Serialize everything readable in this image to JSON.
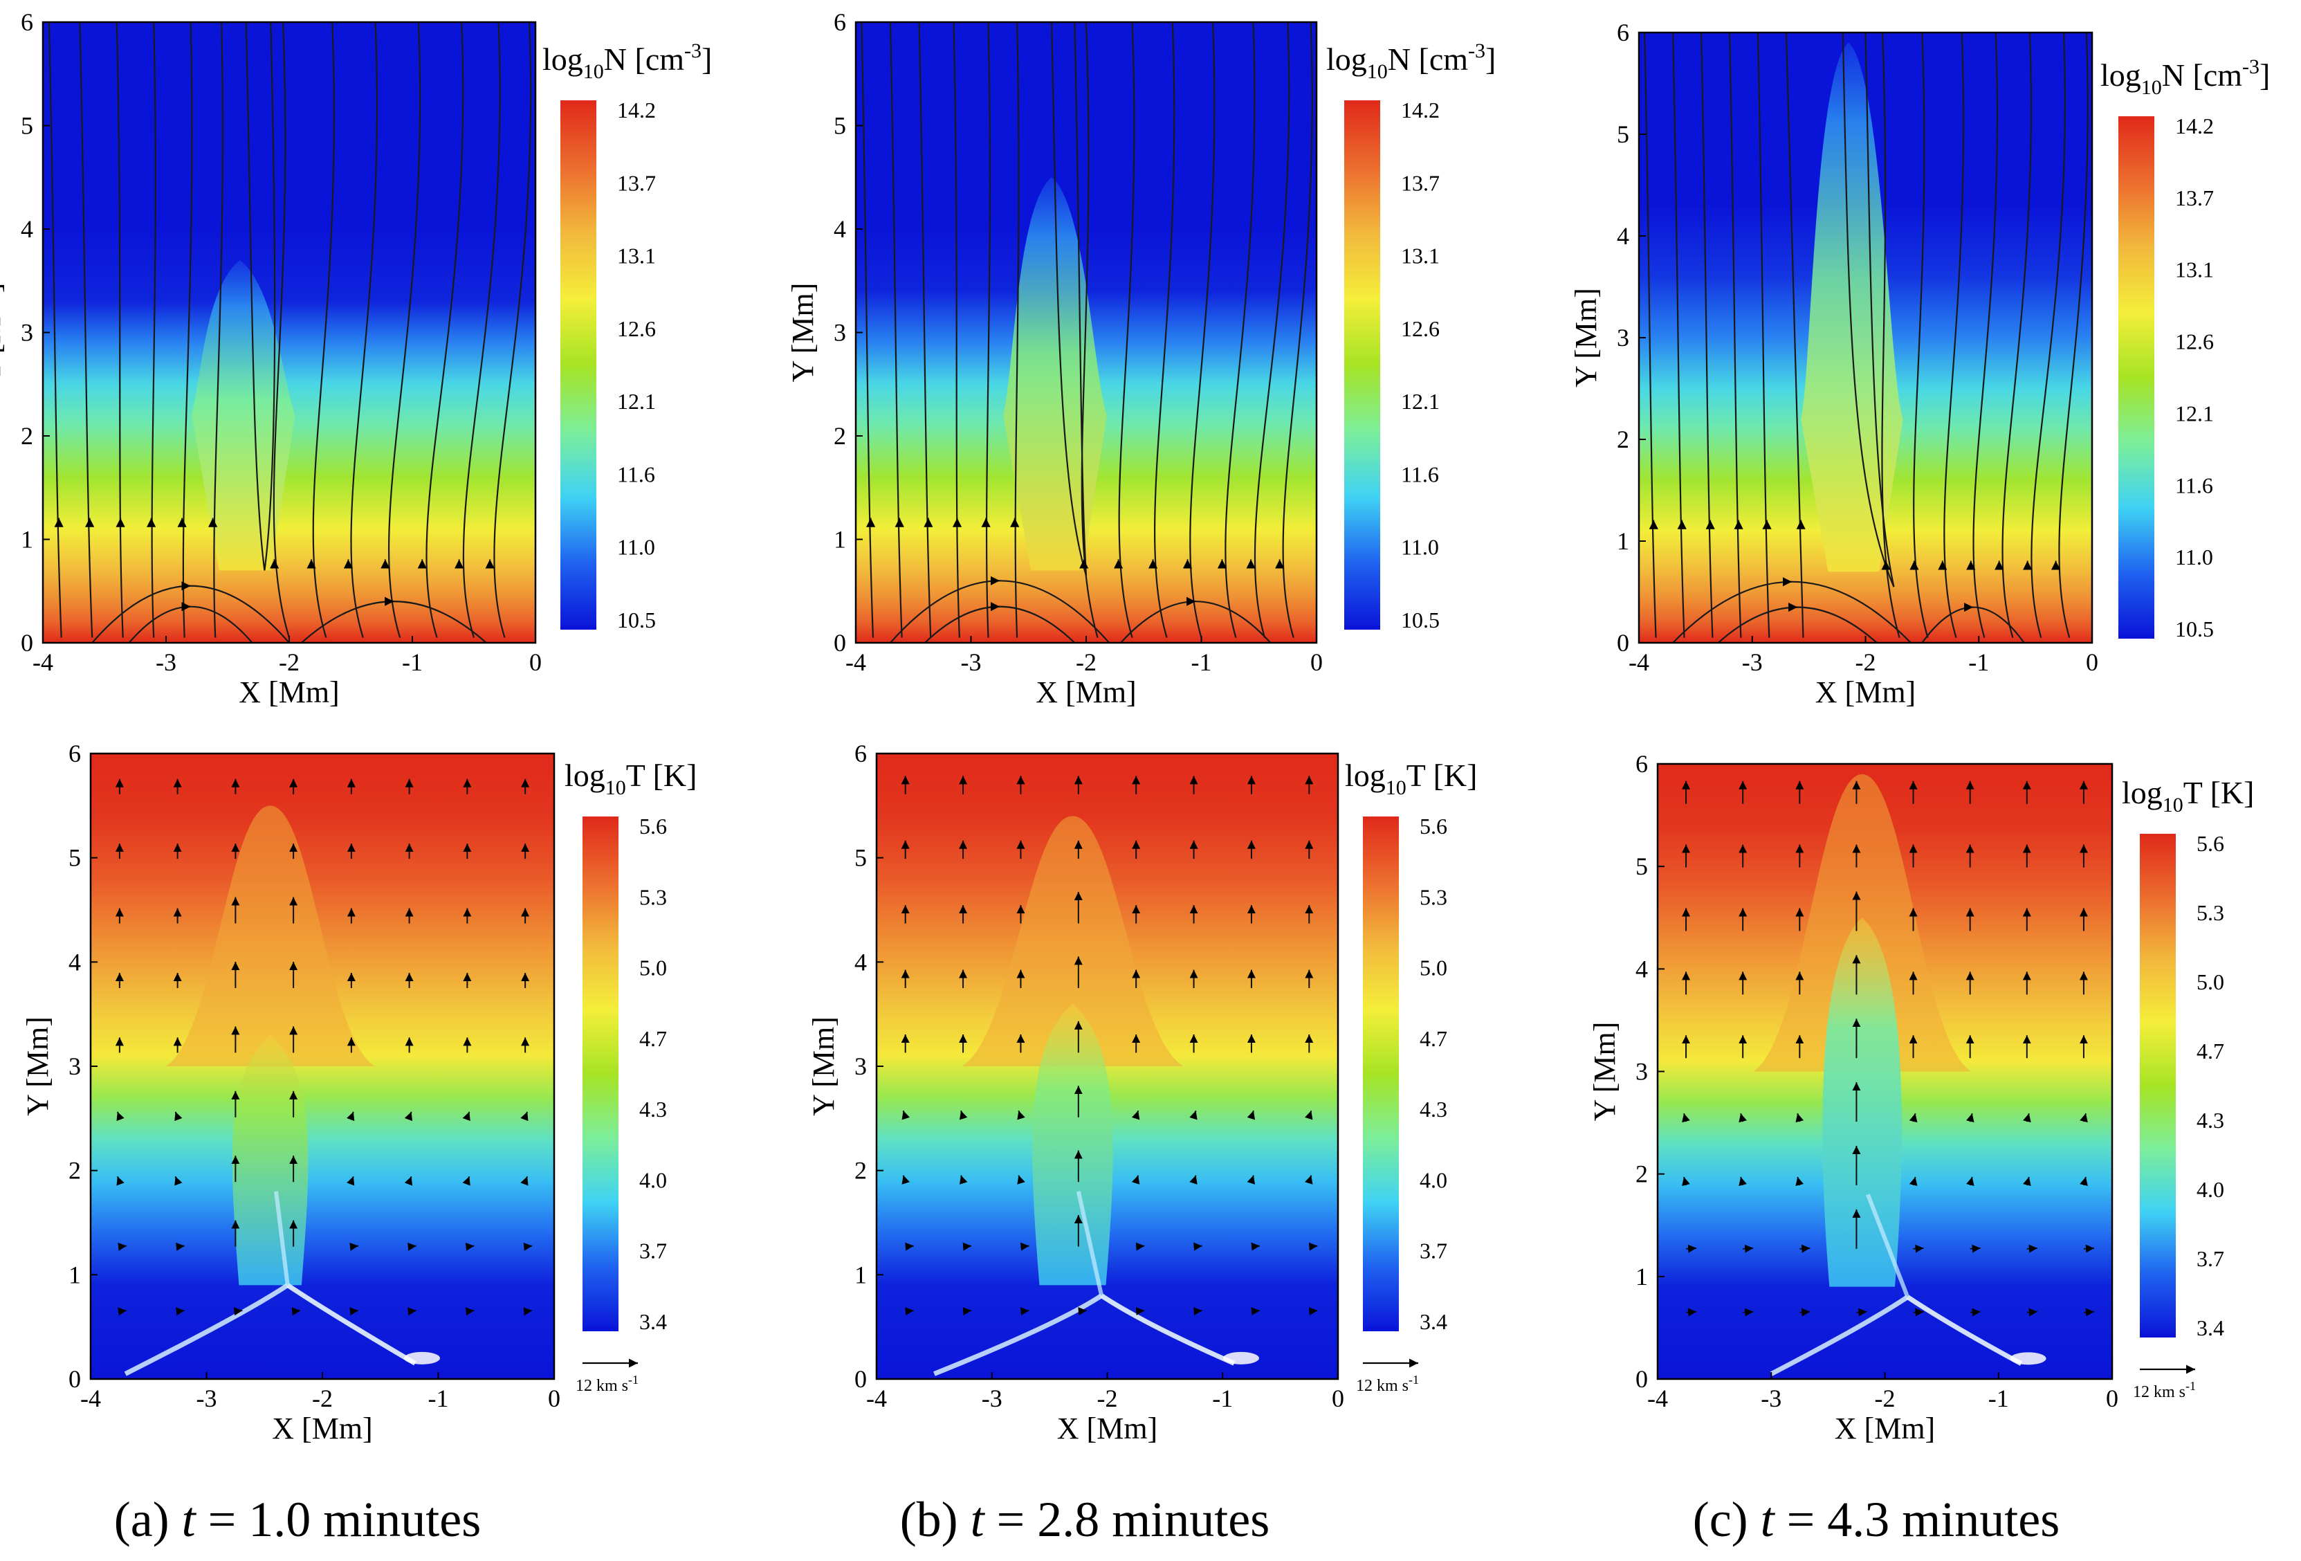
{
  "figure": {
    "colors": {
      "c0": "#0a14d8",
      "c1": "#1f62f0",
      "c2": "#3fd2f4",
      "c3": "#7cee9a",
      "c4": "#a6e424",
      "c5": "#f4ee3a",
      "c6": "#f2b83c",
      "c7": "#ec6c2e",
      "c8": "#e02a1a",
      "frame": "#000000"
    },
    "columns": [
      {
        "caption_label": "(a)",
        "caption_var": "t",
        "caption_eq": "=",
        "caption_value": "1.0",
        "caption_unit": "minutes"
      },
      {
        "caption_label": "(b)",
        "caption_var": "t",
        "caption_eq": "=",
        "caption_value": "2.8",
        "caption_unit": "minutes"
      },
      {
        "caption_label": "(c)",
        "caption_var": "t",
        "caption_eq": "=",
        "caption_value": "4.3",
        "caption_unit": "minutes"
      }
    ],
    "vector_reference": {
      "label": "12 km s",
      "exp": "-1"
    }
  },
  "chart_data": [
    {
      "type": "heatmap",
      "panel": "a-top",
      "quantity": "density",
      "title": "",
      "xlabel": "X [Mm]",
      "ylabel": "Y [Mm]",
      "xlim": [
        -4,
        0
      ],
      "ylim": [
        0,
        6
      ],
      "xticks": [
        "-4",
        "-3",
        "-2",
        "-1",
        "0"
      ],
      "yticks": [
        "0",
        "1",
        "2",
        "3",
        "4",
        "5",
        "6"
      ],
      "colorbar_label": "log10N [cm-3]",
      "colorbar_title": {
        "base": "log",
        "sub": "10",
        "var": "N",
        "unit_open": " [cm",
        "sup": "-3",
        "unit_close": "]"
      },
      "colorbar_ticks": [
        "14.2",
        "13.7",
        "13.1",
        "12.6",
        "12.1",
        "11.6",
        "11.0",
        "10.5"
      ],
      "vmin": 10.5,
      "vmax": 14.2,
      "bands": [
        {
          "y": 0.0,
          "v": 14.2
        },
        {
          "y": 0.2,
          "v": 13.8
        },
        {
          "y": 0.45,
          "v": 13.5
        },
        {
          "y": 0.75,
          "v": 13.2
        },
        {
          "y": 1.1,
          "v": 12.8
        },
        {
          "y": 1.6,
          "v": 12.3
        },
        {
          "y": 2.1,
          "v": 11.8
        },
        {
          "y": 2.5,
          "v": 11.5
        },
        {
          "y": 2.9,
          "v": 11.1
        },
        {
          "y": 3.3,
          "v": 10.6
        },
        {
          "y": 4.0,
          "v": 10.5
        },
        {
          "y": 6.0,
          "v": 10.5
        }
      ],
      "jet": {
        "x_center": -2.4,
        "half_width": 0.28,
        "top": 3.7,
        "core_value": 12.9
      },
      "field_lines": {
        "left_x_bottom": [
          -3.85,
          -3.6,
          -3.35,
          -3.1,
          -2.85,
          -2.6
        ],
        "left_x_top": [
          -3.95,
          -3.7,
          -3.4,
          -3.1,
          -2.8,
          -2.55
        ],
        "center_x": [
          -2.3,
          -2.1
        ],
        "right_x_bottom": [
          -2.0,
          -1.7,
          -1.4,
          -1.1,
          -0.8,
          -0.5,
          -0.25
        ],
        "right_x_top": [
          -2.05,
          -1.65,
          -1.3,
          -0.95,
          -0.6,
          -0.3,
          -0.05
        ],
        "null_x": -2.2,
        "null_y": 0.7,
        "loops": [
          {
            "x1": -3.6,
            "x2": -2.0,
            "h": 0.55
          },
          {
            "x1": -3.3,
            "x2": -2.3,
            "h": 0.35
          },
          {
            "x1": -1.9,
            "x2": -0.4,
            "h": 0.4
          }
        ]
      }
    },
    {
      "type": "heatmap",
      "panel": "b-top",
      "quantity": "density",
      "title": "",
      "xlabel": "X [Mm]",
      "ylabel": "Y [Mm]",
      "xlim": [
        -4,
        0
      ],
      "ylim": [
        0,
        6
      ],
      "xticks": [
        "-4",
        "-3",
        "-2",
        "-1",
        "0"
      ],
      "yticks": [
        "0",
        "1",
        "2",
        "3",
        "4",
        "5",
        "6"
      ],
      "colorbar_label": "log10N [cm-3]",
      "colorbar_title": {
        "base": "log",
        "sub": "10",
        "var": "N",
        "unit_open": " [cm",
        "sup": "-3",
        "unit_close": "]"
      },
      "colorbar_ticks": [
        "14.2",
        "13.7",
        "13.1",
        "12.6",
        "12.1",
        "11.6",
        "11.0",
        "10.5"
      ],
      "vmin": 10.5,
      "vmax": 14.2,
      "bands": [
        {
          "y": 0.0,
          "v": 14.2
        },
        {
          "y": 0.2,
          "v": 13.8
        },
        {
          "y": 0.45,
          "v": 13.5
        },
        {
          "y": 0.75,
          "v": 13.2
        },
        {
          "y": 1.1,
          "v": 12.8
        },
        {
          "y": 1.6,
          "v": 12.3
        },
        {
          "y": 2.1,
          "v": 11.8
        },
        {
          "y": 2.5,
          "v": 11.5
        },
        {
          "y": 2.9,
          "v": 11.1
        },
        {
          "y": 3.4,
          "v": 10.6
        },
        {
          "y": 4.0,
          "v": 10.5
        },
        {
          "y": 6.0,
          "v": 10.5
        }
      ],
      "jet": {
        "x_center": -2.3,
        "half_width": 0.3,
        "top": 4.5,
        "core_value": 13.0
      },
      "field_lines": {
        "left_x_bottom": [
          -3.85,
          -3.6,
          -3.35,
          -3.1,
          -2.85,
          -2.6
        ],
        "left_x_top": [
          -3.95,
          -3.7,
          -3.45,
          -3.15,
          -2.85,
          -2.6
        ],
        "center_x": [
          -2.25,
          -2.05
        ],
        "right_x_bottom": [
          -1.9,
          -1.6,
          -1.3,
          -1.0,
          -0.7,
          -0.45,
          -0.2
        ],
        "right_x_top": [
          -2.0,
          -1.6,
          -1.25,
          -0.9,
          -0.55,
          -0.25,
          -0.05
        ],
        "null_x": -2.0,
        "null_y": 0.65,
        "loops": [
          {
            "x1": -3.7,
            "x2": -1.8,
            "h": 0.6
          },
          {
            "x1": -3.4,
            "x2": -2.1,
            "h": 0.35
          },
          {
            "x1": -1.7,
            "x2": -0.4,
            "h": 0.4
          }
        ]
      }
    },
    {
      "type": "heatmap",
      "panel": "c-top",
      "quantity": "density",
      "title": "",
      "xlabel": "X [Mm]",
      "ylabel": "Y [Mm]",
      "xlim": [
        -4,
        0
      ],
      "ylim": [
        0,
        6
      ],
      "xticks": [
        "-4",
        "-3",
        "-2",
        "-1",
        "0"
      ],
      "yticks": [
        "0",
        "1",
        "2",
        "3",
        "4",
        "5",
        "6"
      ],
      "colorbar_label": "log10N [cm-3]",
      "colorbar_title": {
        "base": "log",
        "sub": "10",
        "var": "N",
        "unit_open": " [cm",
        "sup": "-3",
        "unit_close": "]"
      },
      "colorbar_ticks": [
        "14.2",
        "13.7",
        "13.1",
        "12.6",
        "12.1",
        "11.6",
        "11.0",
        "10.5"
      ],
      "vmin": 10.5,
      "vmax": 14.2,
      "bands": [
        {
          "y": 0.0,
          "v": 14.2
        },
        {
          "y": 0.2,
          "v": 13.8
        },
        {
          "y": 0.45,
          "v": 13.5
        },
        {
          "y": 0.75,
          "v": 13.2
        },
        {
          "y": 1.1,
          "v": 12.8
        },
        {
          "y": 1.6,
          "v": 12.3
        },
        {
          "y": 2.1,
          "v": 11.8
        },
        {
          "y": 2.5,
          "v": 11.5
        },
        {
          "y": 3.0,
          "v": 11.1
        },
        {
          "y": 3.6,
          "v": 10.7
        },
        {
          "y": 4.3,
          "v": 10.5
        },
        {
          "y": 6.0,
          "v": 10.5
        }
      ],
      "jet": {
        "x_center": -2.15,
        "half_width": 0.3,
        "top": 5.9,
        "core_value": 12.9
      },
      "field_lines": {
        "left_x_bottom": [
          -3.85,
          -3.6,
          -3.35,
          -3.1,
          -2.85,
          -2.55
        ],
        "left_x_top": [
          -3.95,
          -3.7,
          -3.45,
          -3.2,
          -2.95,
          -2.7
        ],
        "center_x": [
          -2.15,
          -1.95
        ],
        "right_x_bottom": [
          -1.7,
          -1.45,
          -1.2,
          -0.95,
          -0.7,
          -0.45,
          -0.2
        ],
        "right_x_top": [
          -1.85,
          -1.5,
          -1.15,
          -0.85,
          -0.55,
          -0.25,
          -0.05
        ],
        "null_x": -1.75,
        "null_y": 0.55,
        "loops": [
          {
            "x1": -3.7,
            "x2": -1.6,
            "h": 0.6
          },
          {
            "x1": -3.3,
            "x2": -1.9,
            "h": 0.35
          },
          {
            "x1": -1.5,
            "x2": -0.6,
            "h": 0.35
          }
        ]
      }
    },
    {
      "type": "heatmap",
      "panel": "a-bottom",
      "quantity": "temperature",
      "title": "",
      "xlabel": "X [Mm]",
      "ylabel": "Y [Mm]",
      "xlim": [
        -4,
        0
      ],
      "ylim": [
        0,
        6
      ],
      "xticks": [
        "-4",
        "-3",
        "-2",
        "-1",
        "0"
      ],
      "yticks": [
        "0",
        "1",
        "2",
        "3",
        "4",
        "5",
        "6"
      ],
      "colorbar_label": "log10T [K]",
      "colorbar_title": {
        "base": "log",
        "sub": "10",
        "var": "T",
        "unit_open": " [K]",
        "sup": "",
        "unit_close": ""
      },
      "colorbar_ticks": [
        "5.6",
        "5.3",
        "5.0",
        "4.7",
        "4.3",
        "4.0",
        "3.7",
        "3.4"
      ],
      "vmin": 3.4,
      "vmax": 5.6,
      "bands": [
        {
          "y": 0.0,
          "v": 3.4
        },
        {
          "y": 0.9,
          "v": 3.45
        },
        {
          "y": 1.4,
          "v": 3.7
        },
        {
          "y": 1.9,
          "v": 3.9
        },
        {
          "y": 2.3,
          "v": 4.1
        },
        {
          "y": 2.7,
          "v": 4.4
        },
        {
          "y": 3.1,
          "v": 4.8
        },
        {
          "y": 3.6,
          "v": 5.0
        },
        {
          "y": 4.2,
          "v": 5.2
        },
        {
          "y": 4.8,
          "v": 5.4
        },
        {
          "y": 5.4,
          "v": 5.55
        },
        {
          "y": 6.0,
          "v": 5.6
        }
      ],
      "jet": {
        "x_center": -2.45,
        "half_width": 0.3,
        "top": 5.5,
        "core_value": 4.4,
        "cool_top": 3.3
      },
      "current_sheet": {
        "apex_x": -2.3,
        "apex_y": 0.9,
        "left_x": -3.7,
        "right_x": -1.2
      },
      "vectors": {
        "length_scale": 1.0,
        "ref_speed": 12
      }
    },
    {
      "type": "heatmap",
      "panel": "b-bottom",
      "quantity": "temperature",
      "title": "",
      "xlabel": "X [Mm]",
      "ylabel": "Y [Mm]",
      "xlim": [
        -4,
        0
      ],
      "ylim": [
        0,
        6
      ],
      "xticks": [
        "-4",
        "-3",
        "-2",
        "-1",
        "0"
      ],
      "yticks": [
        "0",
        "1",
        "2",
        "3",
        "4",
        "5",
        "6"
      ],
      "colorbar_label": "log10T [K]",
      "colorbar_title": {
        "base": "log",
        "sub": "10",
        "var": "T",
        "unit_open": " [K]",
        "sup": "",
        "unit_close": ""
      },
      "colorbar_ticks": [
        "5.6",
        "5.3",
        "5.0",
        "4.7",
        "4.3",
        "4.0",
        "3.7",
        "3.4"
      ],
      "vmin": 3.4,
      "vmax": 5.6,
      "bands": [
        {
          "y": 0.0,
          "v": 3.4
        },
        {
          "y": 0.9,
          "v": 3.45
        },
        {
          "y": 1.4,
          "v": 3.7
        },
        {
          "y": 1.9,
          "v": 3.9
        },
        {
          "y": 2.3,
          "v": 4.1
        },
        {
          "y": 2.7,
          "v": 4.4
        },
        {
          "y": 3.1,
          "v": 4.8
        },
        {
          "y": 3.6,
          "v": 5.0
        },
        {
          "y": 4.2,
          "v": 5.2
        },
        {
          "y": 4.8,
          "v": 5.4
        },
        {
          "y": 5.4,
          "v": 5.55
        },
        {
          "y": 6.0,
          "v": 5.6
        }
      ],
      "jet": {
        "x_center": -2.3,
        "half_width": 0.32,
        "top": 5.4,
        "core_value": 4.3,
        "cool_top": 3.6
      },
      "current_sheet": {
        "apex_x": -2.05,
        "apex_y": 0.8,
        "left_x": -3.5,
        "right_x": -0.9
      },
      "vectors": {
        "length_scale": 1.2,
        "ref_speed": 12
      }
    },
    {
      "type": "heatmap",
      "panel": "c-bottom",
      "quantity": "temperature",
      "title": "",
      "xlabel": "X [Mm]",
      "ylabel": "Y [Mm]",
      "xlim": [
        -4,
        0
      ],
      "ylim": [
        0,
        6
      ],
      "xticks": [
        "-4",
        "-3",
        "-2",
        "-1",
        "0"
      ],
      "yticks": [
        "0",
        "1",
        "2",
        "3",
        "4",
        "5",
        "6"
      ],
      "colorbar_label": "log10T [K]",
      "colorbar_title": {
        "base": "log",
        "sub": "10",
        "var": "T",
        "unit_open": " [K]",
        "sup": "",
        "unit_close": ""
      },
      "colorbar_ticks": [
        "5.6",
        "5.3",
        "5.0",
        "4.7",
        "4.3",
        "4.0",
        "3.7",
        "3.4"
      ],
      "vmin": 3.4,
      "vmax": 5.6,
      "bands": [
        {
          "y": 0.0,
          "v": 3.4
        },
        {
          "y": 0.9,
          "v": 3.45
        },
        {
          "y": 1.4,
          "v": 3.7
        },
        {
          "y": 1.9,
          "v": 3.9
        },
        {
          "y": 2.3,
          "v": 4.1
        },
        {
          "y": 2.7,
          "v": 4.4
        },
        {
          "y": 3.1,
          "v": 4.8
        },
        {
          "y": 3.6,
          "v": 5.0
        },
        {
          "y": 4.2,
          "v": 5.2
        },
        {
          "y": 4.8,
          "v": 5.4
        },
        {
          "y": 5.4,
          "v": 5.55
        },
        {
          "y": 6.0,
          "v": 5.6
        }
      ],
      "jet": {
        "x_center": -2.2,
        "half_width": 0.32,
        "top": 5.9,
        "core_value": 4.2,
        "cool_top": 4.5
      },
      "current_sheet": {
        "apex_x": -1.8,
        "apex_y": 0.8,
        "left_x": -3.0,
        "right_x": -0.8
      },
      "vectors": {
        "length_scale": 1.5,
        "ref_speed": 12
      }
    }
  ]
}
